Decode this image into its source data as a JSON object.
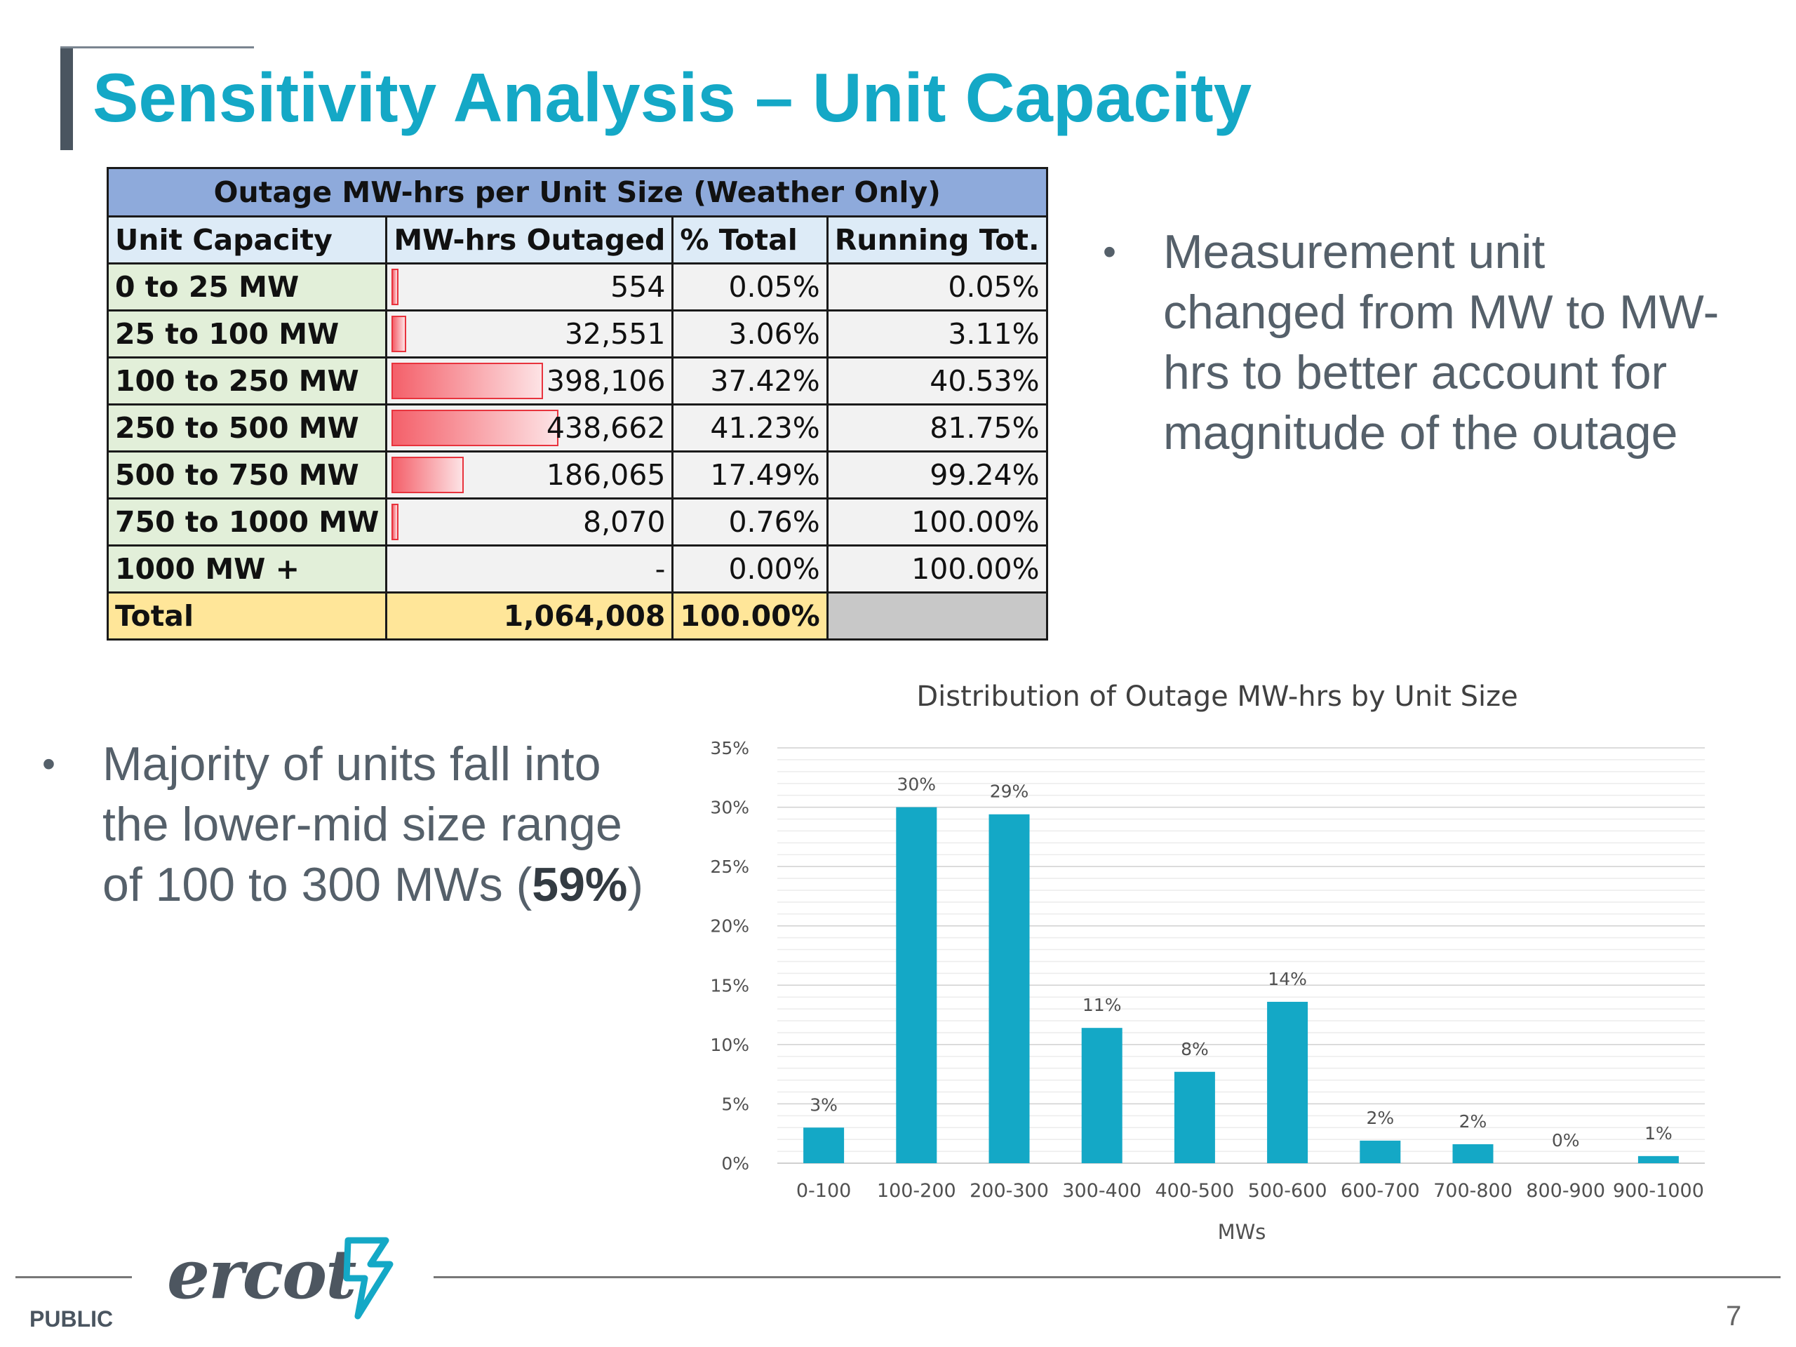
{
  "title": "Sensitivity Analysis – Unit Capacity",
  "table": {
    "caption": "Outage MW-hrs per Unit Size (Weather Only)",
    "headers": [
      "Unit Capacity",
      "MW-hrs Outaged",
      "% Total",
      "Running Tot."
    ],
    "rows": [
      {
        "cap": "0 to 25 MW",
        "mw": "554",
        "pct": "0.05%",
        "run": "0.05%",
        "share": 0.0013
      },
      {
        "cap": "25 to 100 MW",
        "mw": "32,551",
        "pct": "3.06%",
        "run": "3.11%",
        "share": 0.074
      },
      {
        "cap": "100 to 250 MW",
        "mw": "398,106",
        "pct": "37.42%",
        "run": "40.53%",
        "share": 0.908
      },
      {
        "cap": "250 to 500 MW",
        "mw": "438,662",
        "pct": "41.23%",
        "run": "81.75%",
        "share": 1.0
      },
      {
        "cap": "500 to 750 MW",
        "mw": "186,065",
        "pct": "17.49%",
        "run": "99.24%",
        "share": 0.424
      },
      {
        "cap": "750 to 1000 MW",
        "mw": "8,070",
        "pct": "0.76%",
        "run": "100.00%",
        "share": 0.018
      },
      {
        "cap": "1000 MW +",
        "mw": "-",
        "pct": "0.00%",
        "run": "100.00%",
        "share": 0
      }
    ],
    "total": {
      "label": "Total",
      "mw": "1,064,008",
      "pct": "100.00%"
    },
    "bar_color": "#f4606a"
  },
  "bullets": {
    "b1": "Measurement unit changed from MW to MW-hrs to better account for magnitude of the outage",
    "b2_pre": "Majority of units fall into the lower-mid size range of 100 to 300 MWs (",
    "b2_bold": "59%",
    "b2_post": ")",
    "marker": "•"
  },
  "chart_data": {
    "type": "bar",
    "title": "Distribution of Outage MW-hrs by Unit Size",
    "xlabel": "MWs",
    "ylabel": "",
    "categories": [
      "0-100",
      "100-200",
      "200-300",
      "300-400",
      "400-500",
      "500-600",
      "600-700",
      "700-800",
      "800-900",
      "900-1000"
    ],
    "values": [
      3,
      30,
      29.4,
      11.4,
      7.7,
      13.6,
      1.9,
      1.6,
      0,
      0.6
    ],
    "data_labels": [
      "3%",
      "30%",
      "29%",
      "11%",
      "8%",
      "14%",
      "2%",
      "2%",
      "0%",
      "1%"
    ],
    "yticks": [
      "0%",
      "5%",
      "10%",
      "15%",
      "20%",
      "25%",
      "30%",
      "35%"
    ],
    "ylim": [
      0,
      35
    ],
    "grid": true,
    "bar_color": "#14a8c6"
  },
  "footer": {
    "logo": "ercot",
    "classification": "PUBLIC",
    "page": "7"
  }
}
